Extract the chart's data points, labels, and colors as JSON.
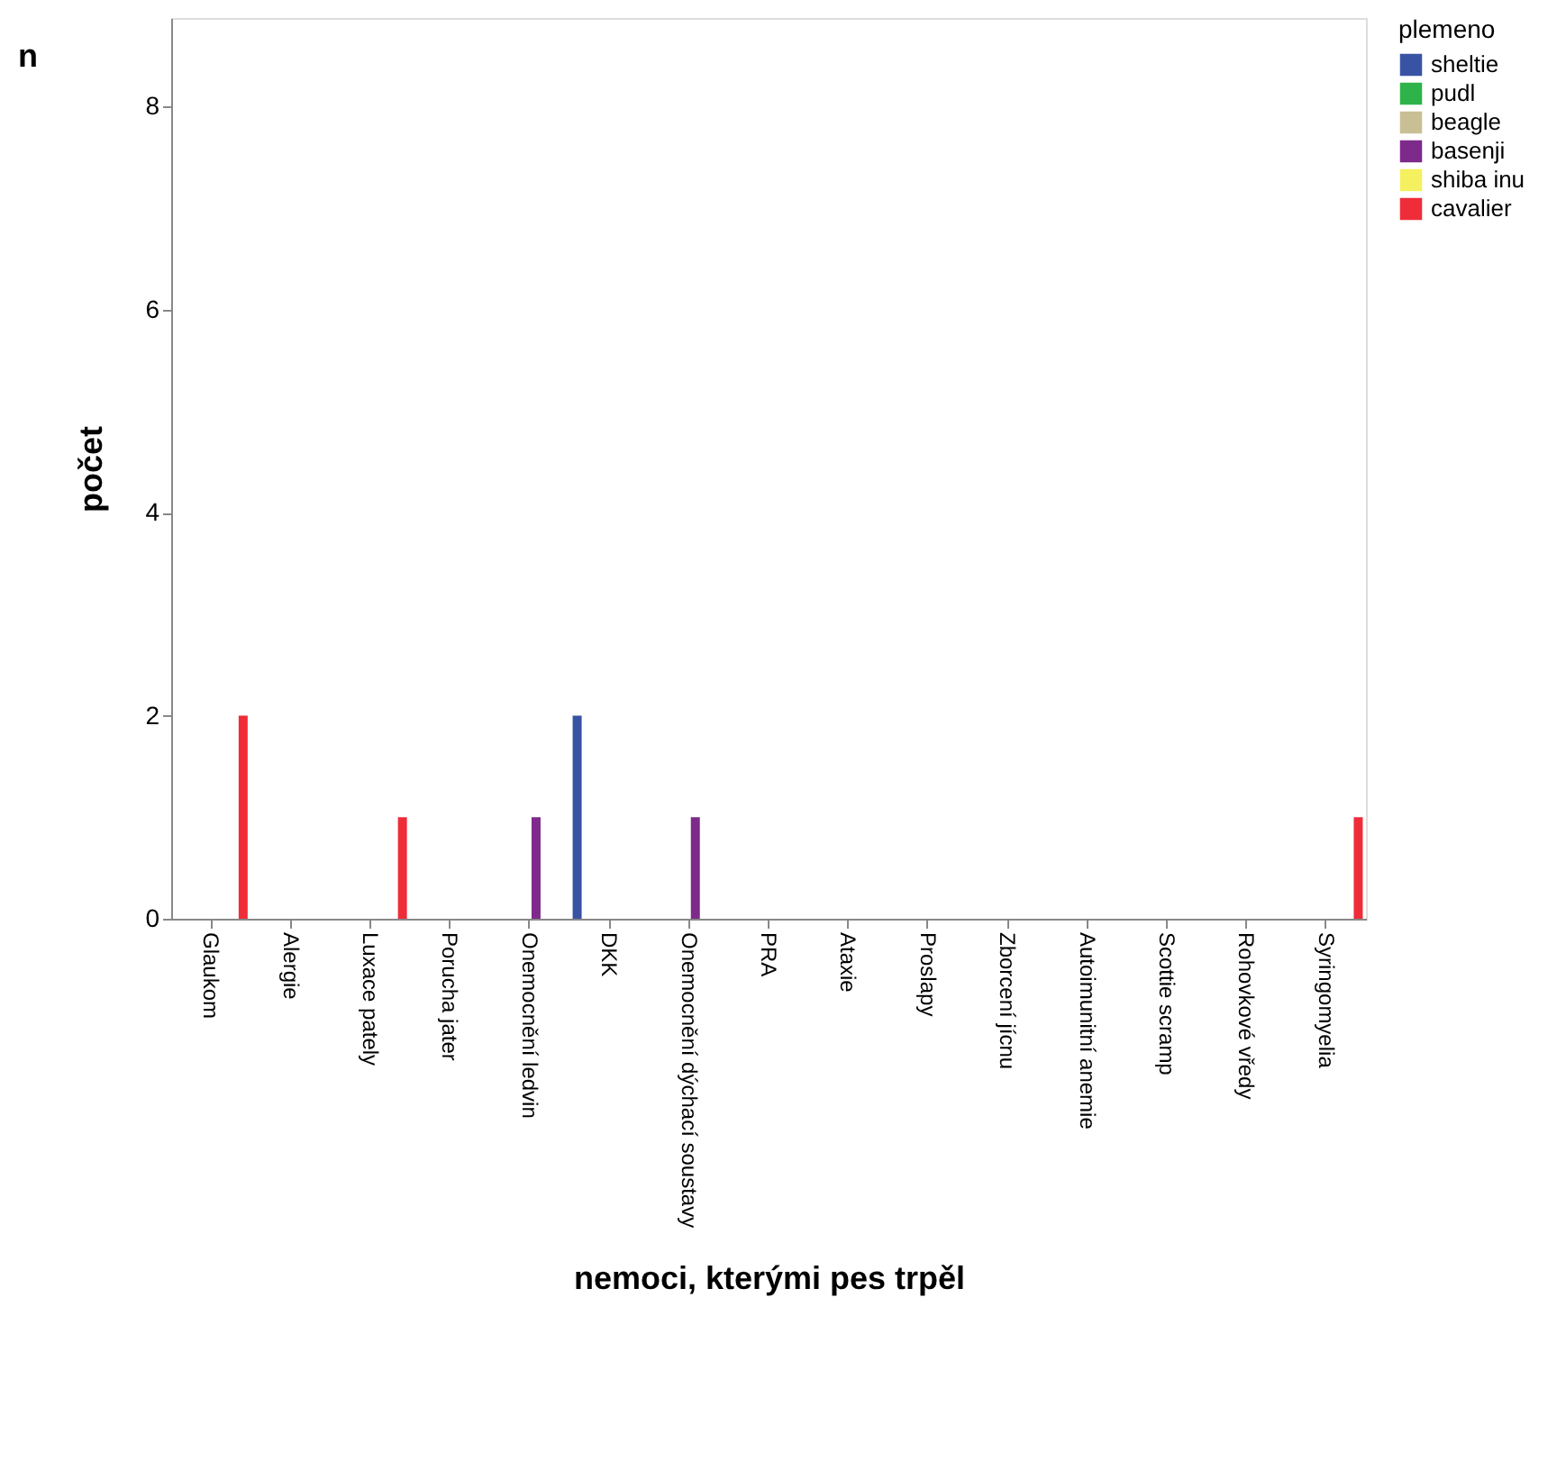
{
  "chart_data": {
    "type": "bar",
    "xlabel": "nemoci, kterými pes trpěl",
    "ylabel": "počet",
    "legend_title": "plemeno",
    "legend": "top right",
    "grid": false,
    "annotations": [
      "n"
    ],
    "categories": [
      "Glaukom",
      "Alergie",
      "Luxace pately",
      "Porucha jater",
      "Onemocnění ledvin",
      "DKK",
      "Onemocnění dýchací soustavy",
      "PRA",
      "Ataxie",
      "Proslapy",
      "Zborcení jícnu",
      "Autoimunitní anemie",
      "Scottie scramp",
      "Rohovkové vředy",
      "Syringomyelia"
    ],
    "ylim": [
      0,
      8.87
    ],
    "yticks": [
      0,
      2,
      4,
      6,
      8
    ],
    "series": [
      {
        "name": "sheltie",
        "color": "#3953a4",
        "values": [
          0,
          0,
          0,
          0,
          0,
          2,
          0,
          0,
          0,
          0,
          0,
          0,
          0,
          0,
          0
        ]
      },
      {
        "name": "pudl",
        "color": "#2db34a",
        "values": [
          0,
          0,
          0,
          0,
          0,
          0,
          0,
          0,
          0,
          0,
          0,
          0,
          0,
          0,
          0
        ]
      },
      {
        "name": "beagle",
        "color": "#c8bf95",
        "values": [
          0,
          0,
          0,
          0,
          0,
          0,
          0,
          0,
          0,
          0,
          0,
          0,
          0,
          0,
          0
        ]
      },
      {
        "name": "basenji",
        "color": "#7d2a8a",
        "values": [
          0,
          0,
          0,
          0,
          1,
          0,
          1,
          0,
          0,
          0,
          0,
          0,
          0,
          0,
          0
        ]
      },
      {
        "name": "shiba inu",
        "color": "#f5f060",
        "values": [
          0,
          0,
          0,
          0,
          0,
          0,
          0,
          0,
          0,
          0,
          0,
          0,
          0,
          0,
          0
        ]
      },
      {
        "name": "cavalier",
        "color": "#ee2d38",
        "values": [
          2,
          0,
          1,
          0,
          0,
          0,
          0,
          0,
          0,
          0,
          0,
          0,
          0,
          0,
          1
        ]
      }
    ]
  }
}
